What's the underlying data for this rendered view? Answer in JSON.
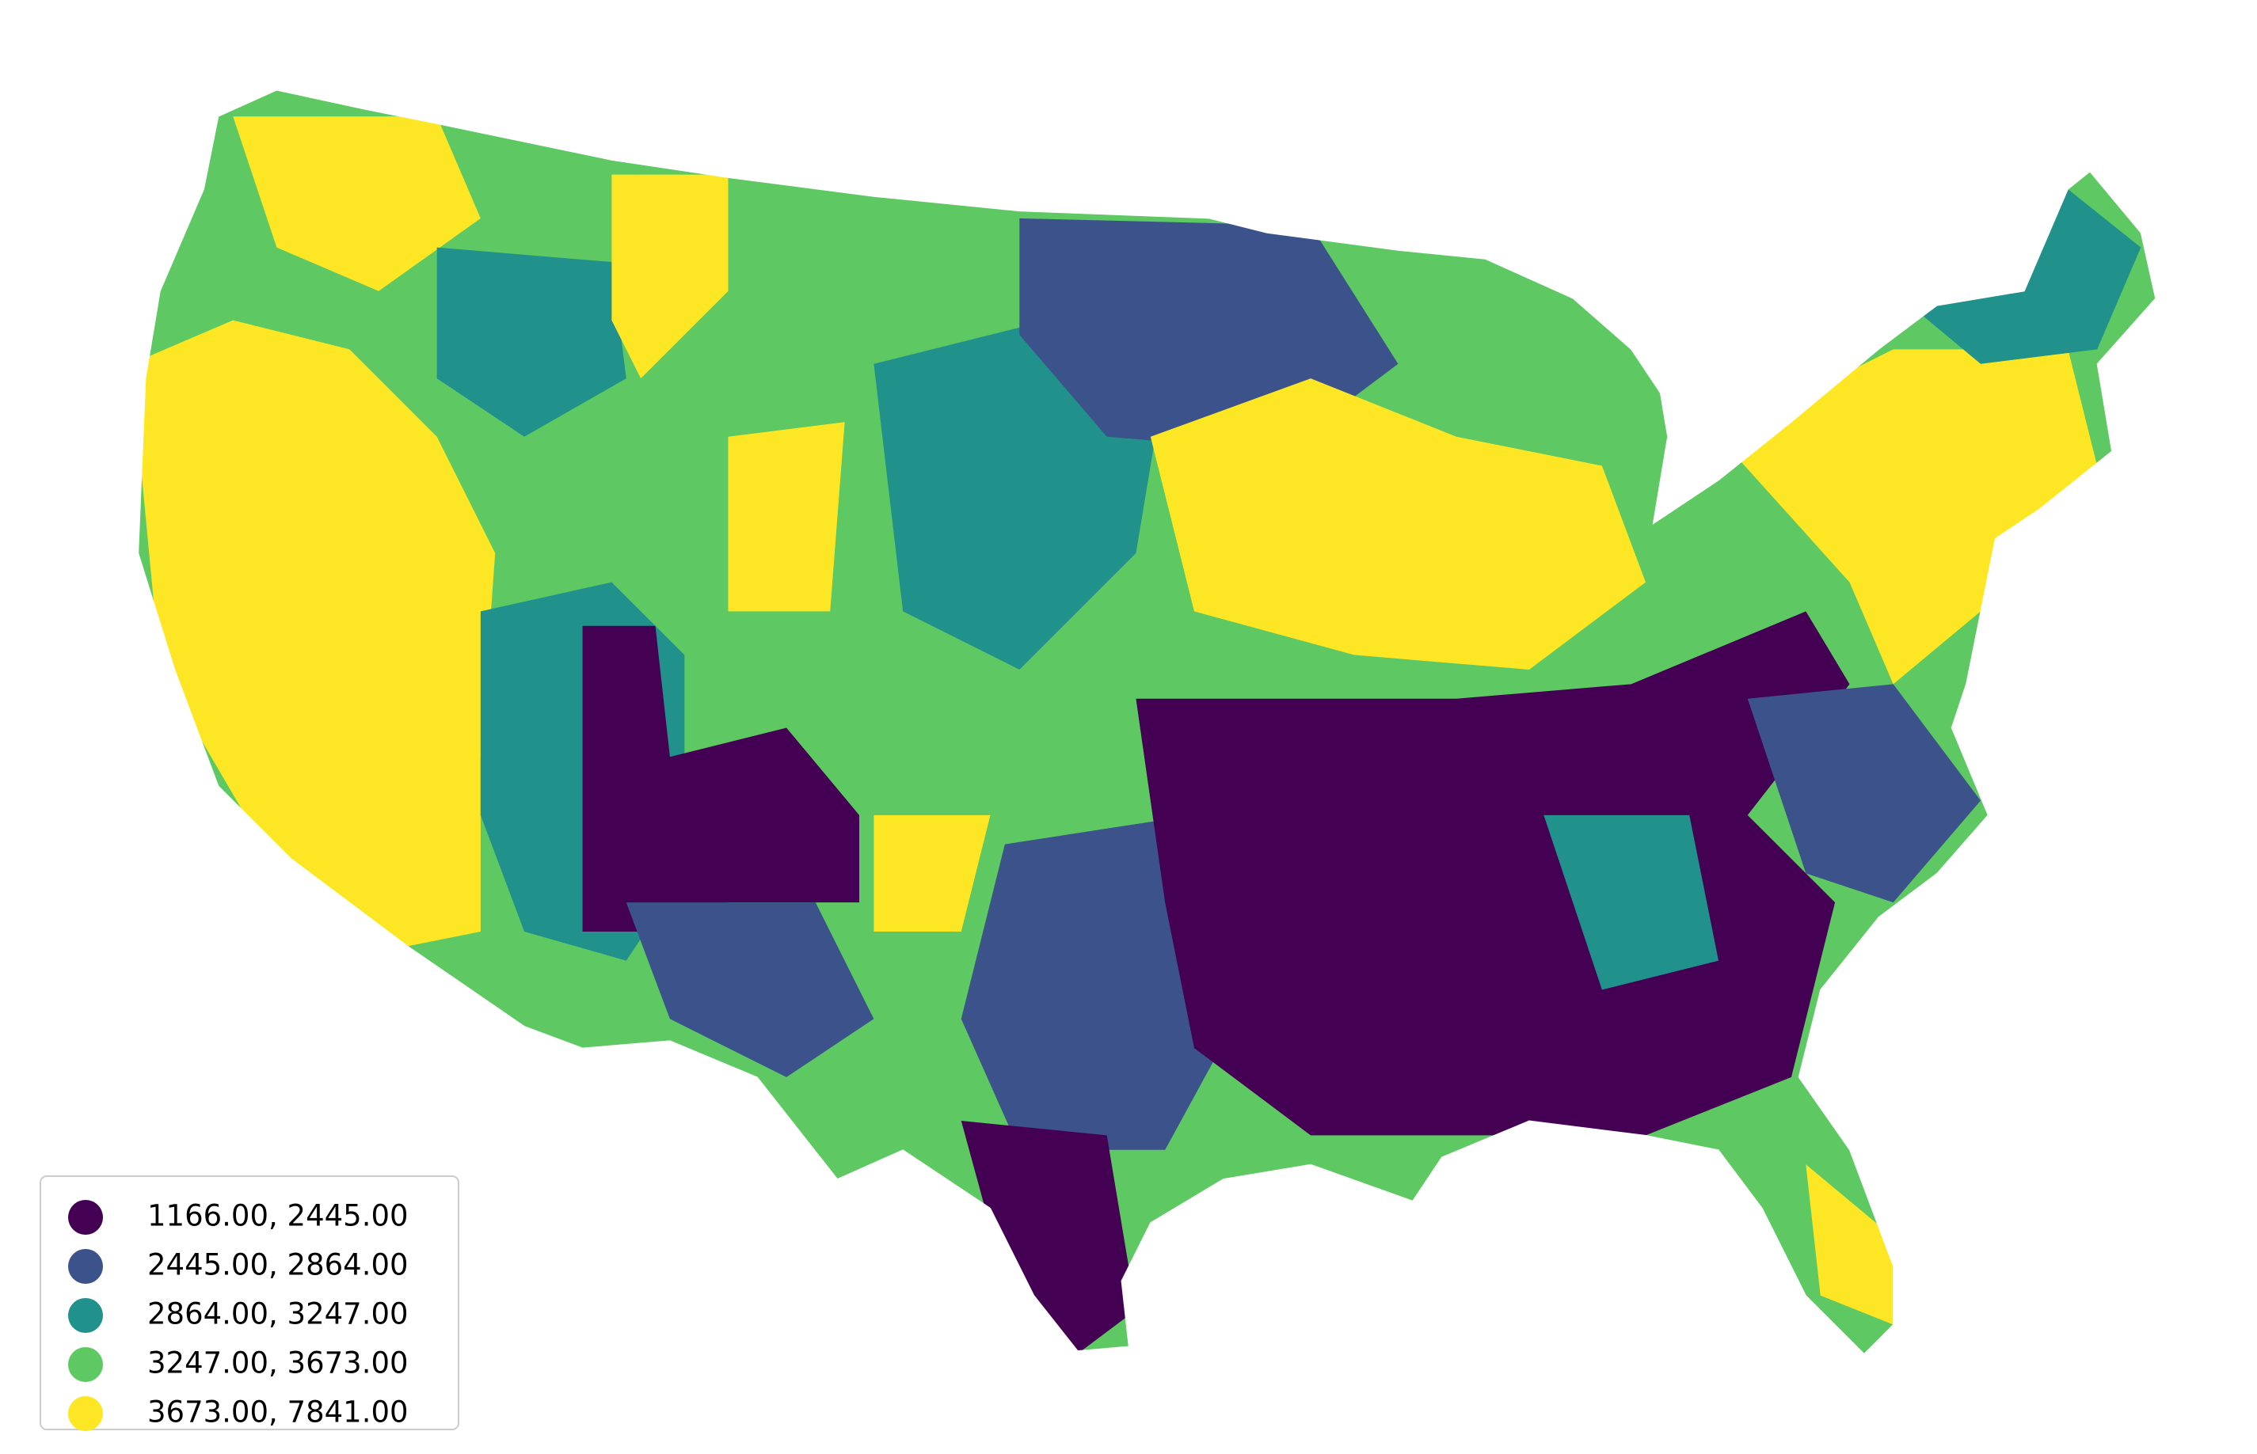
{
  "legend": {
    "items": [
      {
        "label": "1166.00, 2445.00",
        "color": "#440154"
      },
      {
        "label": "2445.00, 2864.00",
        "color": "#3b528b"
      },
      {
        "label": "2864.00, 3247.00",
        "color": "#21918c"
      },
      {
        "label": "3247.00, 3673.00",
        "color": "#5ec962"
      },
      {
        "label": "3673.00, 7841.00",
        "color": "#fde725"
      }
    ]
  }
}
